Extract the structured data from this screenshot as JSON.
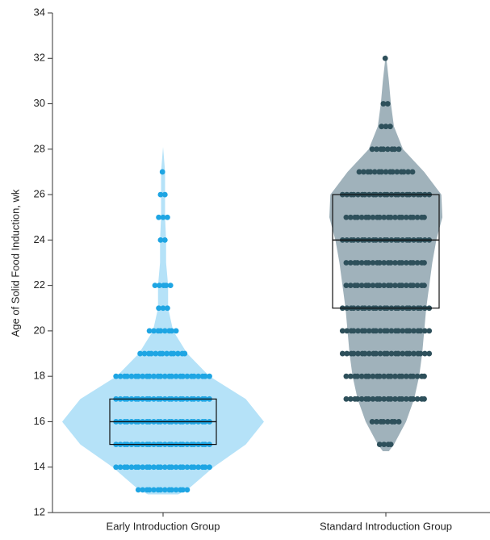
{
  "chart_data": {
    "type": "violin",
    "y_label": "Age of Solid Food Induction, wk",
    "ylim": [
      12,
      34
    ],
    "yticks": [
      12,
      14,
      16,
      18,
      20,
      22,
      24,
      26,
      28,
      30,
      32,
      34
    ],
    "categories": [
      "Early Introduction Group",
      "Standard Introduction Group"
    ],
    "series": [
      {
        "name": "Early Introduction Group",
        "color": "#1ea5e3",
        "fill": "#b5e2f8",
        "q1": 15,
        "median": 16,
        "q3": 17,
        "violin_y": [
          12.8,
          13,
          14,
          15,
          16,
          17,
          18,
          19,
          20,
          21,
          22,
          23,
          24,
          25,
          26,
          27,
          28.1
        ],
        "violin_width": [
          0.15,
          0.24,
          0.5,
          0.82,
          1.0,
          0.82,
          0.46,
          0.24,
          0.1,
          0.05,
          0.05,
          0.03,
          0.03,
          0.02,
          0.02,
          0.02,
          0
        ],
        "point_values": [
          13,
          14,
          15,
          16,
          17,
          18,
          19,
          20,
          21,
          22,
          24,
          25,
          26,
          27
        ],
        "point_counts": [
          14,
          26,
          26,
          26,
          26,
          26,
          13,
          8,
          3,
          5,
          2,
          3,
          2,
          1
        ]
      },
      {
        "name": "Standard Introduction Group",
        "color": "#2e505b",
        "fill": "#a0b2bb",
        "q1": 21,
        "median": 24,
        "q3": 26,
        "violin_y": [
          14.7,
          15,
          16,
          17,
          18,
          19,
          20,
          21,
          22,
          23,
          24,
          25,
          26,
          27,
          28,
          29,
          30,
          31,
          32.2
        ],
        "violin_width": [
          0.03,
          0.08,
          0.2,
          0.28,
          0.33,
          0.36,
          0.38,
          0.4,
          0.43,
          0.46,
          0.5,
          0.56,
          0.55,
          0.38,
          0.17,
          0.08,
          0.05,
          0.03,
          0
        ],
        "point_values": [
          15,
          16,
          17,
          18,
          19,
          20,
          21,
          22,
          23,
          24,
          25,
          26,
          27,
          28,
          29,
          30,
          32
        ],
        "point_counts": [
          4,
          8,
          22,
          22,
          24,
          24,
          24,
          22,
          22,
          24,
          22,
          24,
          15,
          8,
          3,
          2,
          1
        ]
      }
    ]
  }
}
